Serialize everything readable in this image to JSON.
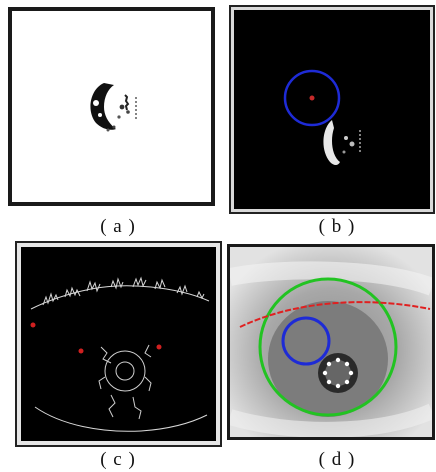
{
  "figure": {
    "panels": [
      {
        "id": "a",
        "caption": "( a )",
        "content": "binary-threshold-pupil"
      },
      {
        "id": "b",
        "caption": "( b )",
        "content": "detected-circle-on-dark"
      },
      {
        "id": "c",
        "caption": "( c )",
        "content": "edge-map"
      },
      {
        "id": "d",
        "caption": "( d )",
        "content": "eye-with-fitted-circles"
      }
    ],
    "colors": {
      "iris_circle": "#22c322",
      "pupil_circle": "#1e2bd6",
      "eyelid_curve": "#e02020",
      "frame_dark": "#1a1a1a"
    }
  }
}
